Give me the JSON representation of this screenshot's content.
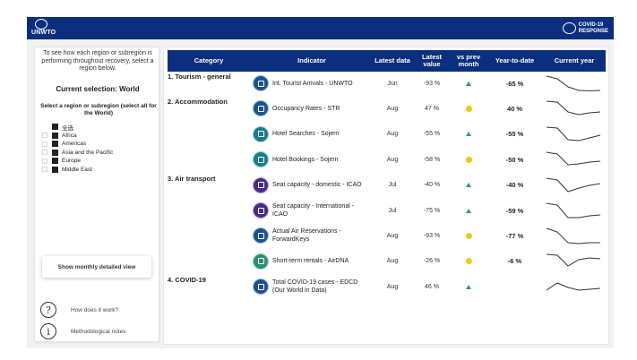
{
  "header": {
    "logo_text": "UNWTO",
    "badge_line1": "COVID-19",
    "badge_line2": "RESPONSE"
  },
  "left_panel": {
    "intro": "To see how each region or subregion is performing throughout recovery, select a region below.",
    "current_selection": "Current selection: World",
    "instruction": "Select a region or subregion (select all for the World)",
    "regions": [
      {
        "label": "全选"
      },
      {
        "label": "Africa"
      },
      {
        "label": "Americas"
      },
      {
        "label": "Asia and the Pacific"
      },
      {
        "label": "Europe"
      },
      {
        "label": "Middle East"
      }
    ],
    "monthly_button": "Show monthly detailed view",
    "help_how": "How does it work?",
    "help_notes": "Methodological notes",
    "help_how_symbol": "?",
    "help_notes_symbol": "i"
  },
  "table": {
    "headers": {
      "category": "Category",
      "indicator": "Indicator",
      "latest_data": "Latest data",
      "latest_value": "Latest value",
      "vs_prev": "vs prev month",
      "ytd": "Year-to-date",
      "current_year": "Current year"
    },
    "rows": [
      {
        "category": "1. Tourism - general",
        "icon": "tourist-arrivals-icon",
        "indicator": "Int. Tourist Arrivals - UNWTO",
        "month": "Jun",
        "value": "-93 %",
        "trend": "up",
        "ytd": "-65 %",
        "spark": [
          0.1,
          0.25,
          0.7,
          0.9,
          0.92,
          0.9
        ]
      },
      {
        "category": "2. Accommodation",
        "icon": "occupancy-icon",
        "indicator": "Occupancy Rates - STR",
        "month": "Aug",
        "value": "47 %",
        "trend": "flat",
        "ytd": "40 %",
        "spark": [
          0.1,
          0.15,
          0.7,
          0.85,
          0.75,
          0.7
        ]
      },
      {
        "category": "",
        "icon": "hotel-search-icon",
        "indicator": "Hotel Searches - Sojern",
        "month": "Aug",
        "value": "-55 %",
        "trend": "up",
        "ytd": "-55 %",
        "spark": [
          0.1,
          0.15,
          0.8,
          0.85,
          0.7,
          0.55
        ]
      },
      {
        "category": "",
        "icon": "hotel-booking-icon",
        "indicator": "Hotel Bookings - Sojern",
        "month": "Aug",
        "value": "-58 %",
        "trend": "flat",
        "ytd": "-50 %",
        "spark": [
          0.1,
          0.2,
          0.8,
          0.75,
          0.65,
          0.6
        ]
      },
      {
        "category": "3. Air transport",
        "icon": "seat-domestic-icon",
        "indicator": "Seat capacity - domestic - ICAO",
        "month": "Jul",
        "value": "-40 %",
        "trend": "up",
        "ytd": "-40 %",
        "spark": [
          0.1,
          0.2,
          0.85,
          0.65,
          0.5,
          0.4
        ]
      },
      {
        "category": "",
        "icon": "seat-international-icon",
        "indicator": "Seat capacity - International - ICAO",
        "month": "Jul",
        "value": "-75 %",
        "trend": "up",
        "ytd": "-59 %",
        "spark": [
          0.1,
          0.2,
          0.9,
          0.9,
          0.8,
          0.75
        ]
      },
      {
        "category": "",
        "icon": "air-reservations-icon",
        "indicator": "Actual Air Reservations - ForwardKeys",
        "month": "Aug",
        "value": "-93 %",
        "trend": "flat",
        "ytd": "-77 %",
        "spark": [
          0.1,
          0.3,
          0.9,
          0.95,
          0.9,
          0.9
        ]
      },
      {
        "category": "",
        "icon": "short-term-rentals-icon",
        "indicator": "Short-term rentals - AirDNA",
        "month": "Aug",
        "value": "-26 %",
        "trend": "flat",
        "ytd": "-6 %",
        "spark": [
          0.1,
          0.15,
          0.75,
          0.4,
          0.3,
          0.35
        ]
      },
      {
        "category": "4. COVID-19",
        "icon": "covid-cases-icon",
        "indicator": "Total COVID-19 cases - EDCD (Our World in Data)",
        "month": "Aug",
        "value": "46 %",
        "trend": "up",
        "ytd": "",
        "spark": [
          0.7,
          0.3,
          0.55,
          0.7,
          0.65,
          0.6
        ]
      }
    ]
  },
  "colors": {
    "navy": "#0b2f7e",
    "trend_up": "#22a84a",
    "trend_flat": "#f5c518"
  }
}
